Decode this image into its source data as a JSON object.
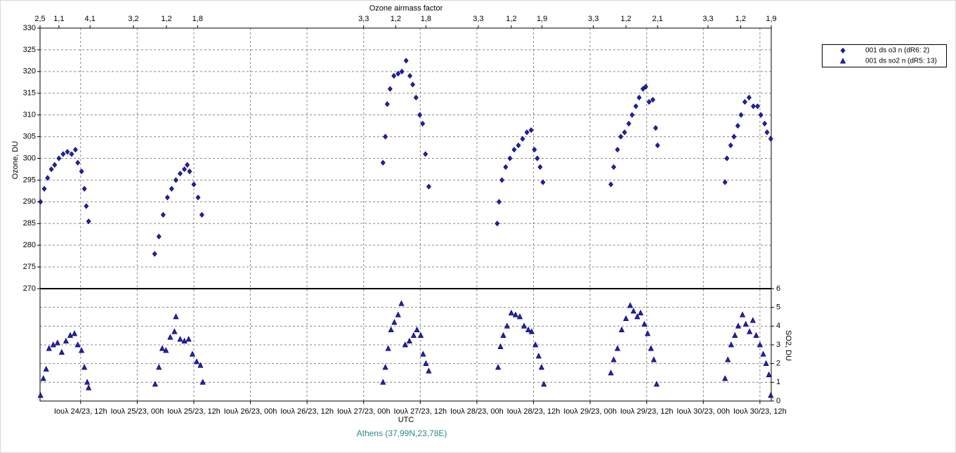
{
  "chart_data": {
    "type": "scatter",
    "title": "Ozone airmass factor",
    "x_label": "UTC",
    "y_label": "Ozone, DU",
    "y2_label": "SO2, DU",
    "footer": "Athens (37,99N,23,78E)",
    "grid": true,
    "legend": "right",
    "xlim": [
      3.4,
      158.4
    ],
    "xticks": [
      {
        "value": 12,
        "label": "Ιουλ 24/23, 12h"
      },
      {
        "value": 24,
        "label": "Ιουλ 25/23, 00h"
      },
      {
        "value": 36,
        "label": "Ιουλ 25/23, 12h"
      },
      {
        "value": 48,
        "label": "Ιουλ 26/23, 00h"
      },
      {
        "value": 60,
        "label": "Ιουλ 26/23, 12h"
      },
      {
        "value": 72,
        "label": "Ιουλ 27/23, 00h"
      },
      {
        "value": 84,
        "label": "Ιουλ 27/23, 12h"
      },
      {
        "value": 96,
        "label": "Ιουλ 28/23, 00h"
      },
      {
        "value": 108,
        "label": "Ιουλ 28/23, 12h"
      },
      {
        "value": 120,
        "label": "Ιουλ 29/23, 00h"
      },
      {
        "value": 132,
        "label": "Ιουλ 29/23, 12h"
      },
      {
        "value": 144,
        "label": "Ιουλ 30/23, 00h"
      },
      {
        "value": 156,
        "label": "Ιουλ 30/23, 12h"
      }
    ],
    "x2ticks": [
      {
        "value": 3.4,
        "label": "2,5"
      },
      {
        "value": 7.4,
        "label": "1,1"
      },
      {
        "value": 14.0,
        "label": "4,1"
      },
      {
        "value": 23.2,
        "label": "3,2"
      },
      {
        "value": 30.2,
        "label": "1,2"
      },
      {
        "value": 36.8,
        "label": "1,8"
      },
      {
        "value": 72.0,
        "label": "3,3"
      },
      {
        "value": 78.8,
        "label": "1,2"
      },
      {
        "value": 85.2,
        "label": "1,8"
      },
      {
        "value": 96.3,
        "label": "3,3"
      },
      {
        "value": 103.3,
        "label": "1,2"
      },
      {
        "value": 109.8,
        "label": "1,9"
      },
      {
        "value": 120.7,
        "label": "3,3"
      },
      {
        "value": 127.6,
        "label": "1,2"
      },
      {
        "value": 134.3,
        "label": "2,1"
      },
      {
        "value": 145.0,
        "label": "3,3"
      },
      {
        "value": 151.9,
        "label": "1,2"
      },
      {
        "value": 158.4,
        "label": "1,9"
      }
    ],
    "ylim": [
      270,
      330
    ],
    "yticks": [
      270,
      275,
      280,
      285,
      290,
      295,
      300,
      305,
      310,
      315,
      320,
      325,
      330
    ],
    "y2lim": [
      0,
      6
    ],
    "y2ticks": [
      0,
      1,
      2,
      3,
      4,
      5,
      6
    ],
    "series": [
      {
        "name": "001 ds o3  n (dR6: 2)",
        "color": "#2222bb",
        "marker": "diamond",
        "x": [
          3.5,
          4.3,
          5.0,
          5.8,
          6.5,
          7.4,
          8.3,
          9.2,
          10.1,
          10.9,
          11.4,
          12.2,
          12.8,
          13.2,
          13.7,
          27.7,
          28.6,
          29.5,
          30.4,
          31.3,
          32.2,
          33.1,
          34.0,
          34.6,
          35.1,
          36.0,
          36.9,
          37.7,
          76.1,
          76.6,
          77.0,
          77.6,
          78.4,
          79.3,
          80.1,
          81.0,
          81.8,
          82.4,
          83.1,
          83.9,
          84.5,
          85.1,
          85.8,
          100.3,
          100.7,
          101.3,
          102.1,
          103.0,
          103.9,
          104.8,
          105.7,
          106.6,
          107.5,
          108.2,
          108.8,
          109.4,
          110.0,
          124.4,
          125.0,
          125.8,
          126.5,
          127.3,
          128.2,
          128.9,
          129.7,
          130.4,
          131.2,
          131.8,
          132.5,
          133.3,
          133.9,
          134.3,
          148.6,
          149.0,
          149.8,
          150.5,
          151.3,
          152.0,
          152.8,
          153.7,
          154.6,
          155.5,
          156.2,
          157.0,
          157.5,
          158.3
        ],
        "values": [
          290,
          293,
          295.5,
          297.5,
          298.5,
          300,
          301,
          301.5,
          301,
          302,
          299,
          297,
          293,
          289,
          285.5,
          278,
          282,
          287,
          291,
          293,
          295,
          296.5,
          297.5,
          298.5,
          297,
          294,
          291,
          287,
          299,
          305,
          312.5,
          316,
          319,
          319.5,
          320,
          322.5,
          319,
          317,
          314,
          310,
          308,
          301,
          293.5,
          285,
          290,
          295,
          298,
          300,
          302,
          303,
          304.5,
          306,
          306.5,
          302,
          300,
          298,
          294.5,
          294,
          298,
          302,
          305,
          306,
          308,
          310,
          312,
          314,
          316,
          316.5,
          313,
          313.5,
          307,
          303,
          294.5,
          300,
          303,
          305,
          307.5,
          310,
          313,
          314,
          312,
          312,
          310,
          308,
          306,
          304.5
        ]
      },
      {
        "name": "001 ds so2 n (dR5: 13)",
        "color": "#2222bb",
        "marker": "triangle",
        "axis": "y2",
        "x": [
          3.5,
          4.1,
          4.7,
          5.3,
          6.2,
          7.1,
          8.0,
          8.9,
          9.8,
          10.7,
          11.4,
          12.2,
          12.8,
          13.4,
          13.7,
          27.8,
          28.6,
          29.3,
          30.1,
          31.0,
          31.9,
          32.2,
          33.1,
          34.0,
          34.9,
          35.7,
          36.6,
          37.4,
          37.9,
          76.1,
          76.6,
          77.2,
          77.8,
          78.5,
          79.3,
          80.0,
          80.8,
          81.7,
          82.6,
          83.3,
          84.1,
          84.6,
          85.2,
          85.8,
          100.5,
          101.0,
          101.6,
          102.4,
          103.3,
          104.2,
          105.1,
          106.0,
          106.9,
          107.6,
          108.4,
          109.1,
          109.7,
          110.2,
          124.4,
          125.0,
          125.8,
          126.7,
          127.6,
          128.5,
          129.2,
          130.0,
          130.7,
          131.5,
          132.2,
          132.9,
          133.5,
          134.1,
          148.6,
          149.2,
          149.9,
          150.7,
          151.4,
          152.3,
          153.0,
          153.8,
          154.5,
          155.2,
          156.0,
          156.7,
          157.3,
          157.9,
          158.3
        ],
        "values": [
          0.3,
          1.2,
          1.7,
          2.8,
          3.0,
          3.1,
          2.6,
          3.2,
          3.5,
          3.6,
          3.0,
          2.7,
          1.8,
          1.0,
          0.7,
          0.9,
          1.8,
          2.8,
          2.7,
          3.4,
          3.7,
          4.5,
          3.3,
          3.2,
          3.3,
          2.5,
          2.1,
          1.9,
          1.0,
          1.0,
          1.8,
          2.8,
          3.8,
          4.2,
          4.6,
          5.2,
          3.0,
          3.2,
          3.5,
          3.8,
          3.5,
          2.5,
          2.0,
          1.6,
          1.8,
          2.9,
          3.5,
          4.0,
          4.7,
          4.6,
          4.5,
          4.0,
          3.8,
          3.7,
          3.0,
          2.4,
          1.8,
          0.9,
          1.5,
          2.2,
          2.8,
          3.8,
          4.4,
          5.1,
          4.8,
          4.5,
          4.7,
          4.1,
          3.6,
          2.8,
          2.2,
          0.9,
          1.2,
          2.2,
          3.0,
          3.5,
          4.0,
          4.6,
          4.1,
          3.7,
          4.3,
          3.5,
          3.0,
          2.5,
          2.0,
          1.4,
          0.3
        ]
      }
    ]
  }
}
